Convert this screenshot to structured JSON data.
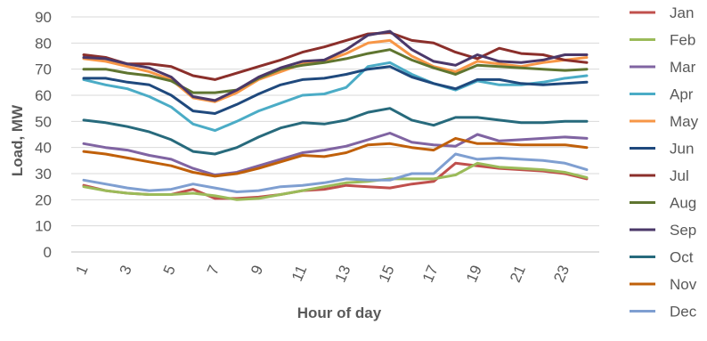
{
  "chart_data": {
    "type": "line",
    "xlabel": "Hour of day",
    "ylabel": "Load, MW",
    "ylim": [
      0,
      90
    ],
    "yticks": [
      0,
      10,
      20,
      30,
      40,
      50,
      60,
      70,
      80,
      90
    ],
    "xticks": [
      1,
      3,
      5,
      7,
      9,
      11,
      13,
      15,
      17,
      19,
      21,
      23
    ],
    "grid": true,
    "legend_position": "right",
    "x": [
      1,
      2,
      3,
      4,
      5,
      6,
      7,
      8,
      9,
      10,
      11,
      12,
      13,
      14,
      15,
      16,
      17,
      18,
      19,
      20,
      21,
      22,
      23,
      24
    ],
    "series": [
      {
        "name": "Jan",
        "color": "#C0504D",
        "values": [
          25.5,
          23.5,
          22.5,
          22,
          22,
          24,
          20.5,
          20.5,
          21,
          22,
          23.5,
          24,
          25.5,
          25,
          24.5,
          26,
          27,
          34,
          33,
          32,
          31.5,
          31,
          30,
          28
        ]
      },
      {
        "name": "Feb",
        "color": "#9BBB59",
        "values": [
          25,
          23.5,
          22.5,
          22,
          22,
          22.5,
          21.5,
          20,
          20.5,
          22,
          23.5,
          25,
          26.5,
          27,
          28,
          28,
          28,
          29.5,
          34,
          32.5,
          32,
          31.5,
          30.5,
          28.5
        ]
      },
      {
        "name": "Mar",
        "color": "#8064A2",
        "values": [
          41.5,
          40,
          39,
          37,
          35.5,
          32,
          29.5,
          30.5,
          33,
          35.5,
          38,
          39,
          40.5,
          43,
          45.5,
          42,
          41,
          40.5,
          45,
          42.5,
          43,
          43.5,
          44,
          43.5
        ]
      },
      {
        "name": "Apr",
        "color": "#4BACC6",
        "values": [
          66,
          64,
          62.5,
          59.5,
          55.5,
          49,
          46.5,
          50,
          54,
          57,
          60,
          60.5,
          63,
          71,
          72.5,
          68,
          64.5,
          62,
          65.5,
          64,
          64,
          65,
          66.5,
          67.5
        ]
      },
      {
        "name": "May",
        "color": "#F79646",
        "values": [
          74,
          73,
          71,
          69,
          66,
          59,
          57.5,
          61,
          66,
          69,
          72,
          73,
          76,
          80,
          81,
          75,
          71,
          69,
          73,
          72,
          71,
          72.5,
          73.5,
          74.5
        ]
      },
      {
        "name": "Jun",
        "color": "#1F497D",
        "values": [
          66.5,
          66.5,
          65,
          64,
          60,
          54,
          53,
          56.5,
          60.5,
          64,
          66,
          66.5,
          68,
          70,
          71,
          67,
          64.5,
          62.5,
          66,
          66,
          64.5,
          64,
          64.5,
          65
        ]
      },
      {
        "name": "Jul",
        "color": "#8B2F2B",
        "values": [
          75.5,
          74.5,
          72,
          72,
          71,
          67.5,
          66,
          68.5,
          71,
          73.5,
          76.5,
          78.5,
          81,
          83.5,
          84,
          81,
          80,
          76.5,
          74,
          78,
          76,
          75.5,
          73.5,
          72.5
        ]
      },
      {
        "name": "Aug",
        "color": "#5F7530",
        "values": [
          70,
          70,
          68.5,
          67.5,
          65.5,
          61,
          61,
          62,
          66.5,
          70,
          71.5,
          72.5,
          74,
          76,
          77.5,
          73.5,
          70.5,
          68,
          71.5,
          71,
          70.5,
          70,
          69.5,
          70
        ]
      },
      {
        "name": "Sep",
        "color": "#4B3869",
        "values": [
          74.5,
          74,
          72,
          70.5,
          67,
          59.5,
          58,
          62,
          67,
          70.5,
          73,
          73.5,
          77.5,
          83,
          84.5,
          77.5,
          73,
          71.5,
          75.5,
          73,
          72.5,
          73.5,
          75.5,
          75.5
        ]
      },
      {
        "name": "Oct",
        "color": "#276A7C",
        "values": [
          50.5,
          49.5,
          48,
          46,
          43,
          38.5,
          37.5,
          40,
          44,
          47.5,
          49.5,
          49,
          50.5,
          53.5,
          55,
          50.5,
          48.5,
          51.5,
          51.5,
          50.5,
          49.5,
          49.5,
          50,
          50
        ]
      },
      {
        "name": "Nov",
        "color": "#C0600A",
        "values": [
          38.5,
          37.5,
          36,
          34.5,
          33,
          30.5,
          29,
          30,
          32,
          34.5,
          37,
          36.5,
          38,
          41,
          41.5,
          40,
          39,
          43.5,
          41.5,
          41.5,
          41,
          41,
          41,
          40
        ]
      },
      {
        "name": "Dec",
        "color": "#7F9FD1",
        "values": [
          27.5,
          26,
          24.5,
          23.5,
          24,
          26,
          24.5,
          23,
          23.5,
          25,
          25.5,
          26.5,
          28,
          27.5,
          27.5,
          30,
          30,
          37.5,
          35.5,
          36,
          35.5,
          35,
          34,
          31.5
        ]
      }
    ]
  }
}
